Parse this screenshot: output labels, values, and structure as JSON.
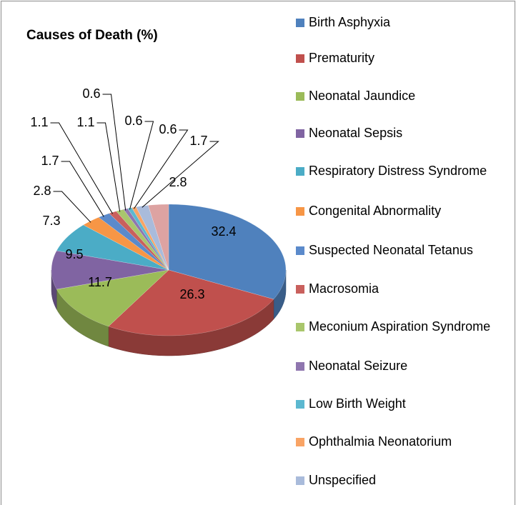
{
  "chart_data": {
    "type": "pie",
    "title": "Causes of Death (%)",
    "categories": [
      "Birth Asphyxia",
      "Prematurity",
      "Neonatal Jaundice",
      "Neonatal Sepsis",
      "Respiratory Distress Syndrome",
      "Congenital Abnormality",
      "Suspected Neonatal Tetanus",
      "Macrosomia",
      "Meconium Aspiration Syndrome",
      "Neonatal Seizure",
      "Low Birth Weight",
      "Ophthalmia Neonatorium",
      "Unspecified",
      null
    ],
    "values": [
      32.4,
      26.3,
      11.7,
      9.5,
      7.3,
      2.8,
      1.7,
      1.1,
      1.1,
      0.6,
      0.6,
      0.6,
      1.7,
      2.8
    ],
    "colors": [
      "#4F81BD",
      "#C0504D",
      "#9BBB59",
      "#8064A2",
      "#4BACC6",
      "#F79646",
      "#5B8ACB",
      "#C9605D",
      "#A9C66C",
      "#8F76AF",
      "#5CB8D0",
      "#F9A465",
      "#A9BBDB",
      "#DDA3A2"
    ],
    "legend": "right"
  }
}
